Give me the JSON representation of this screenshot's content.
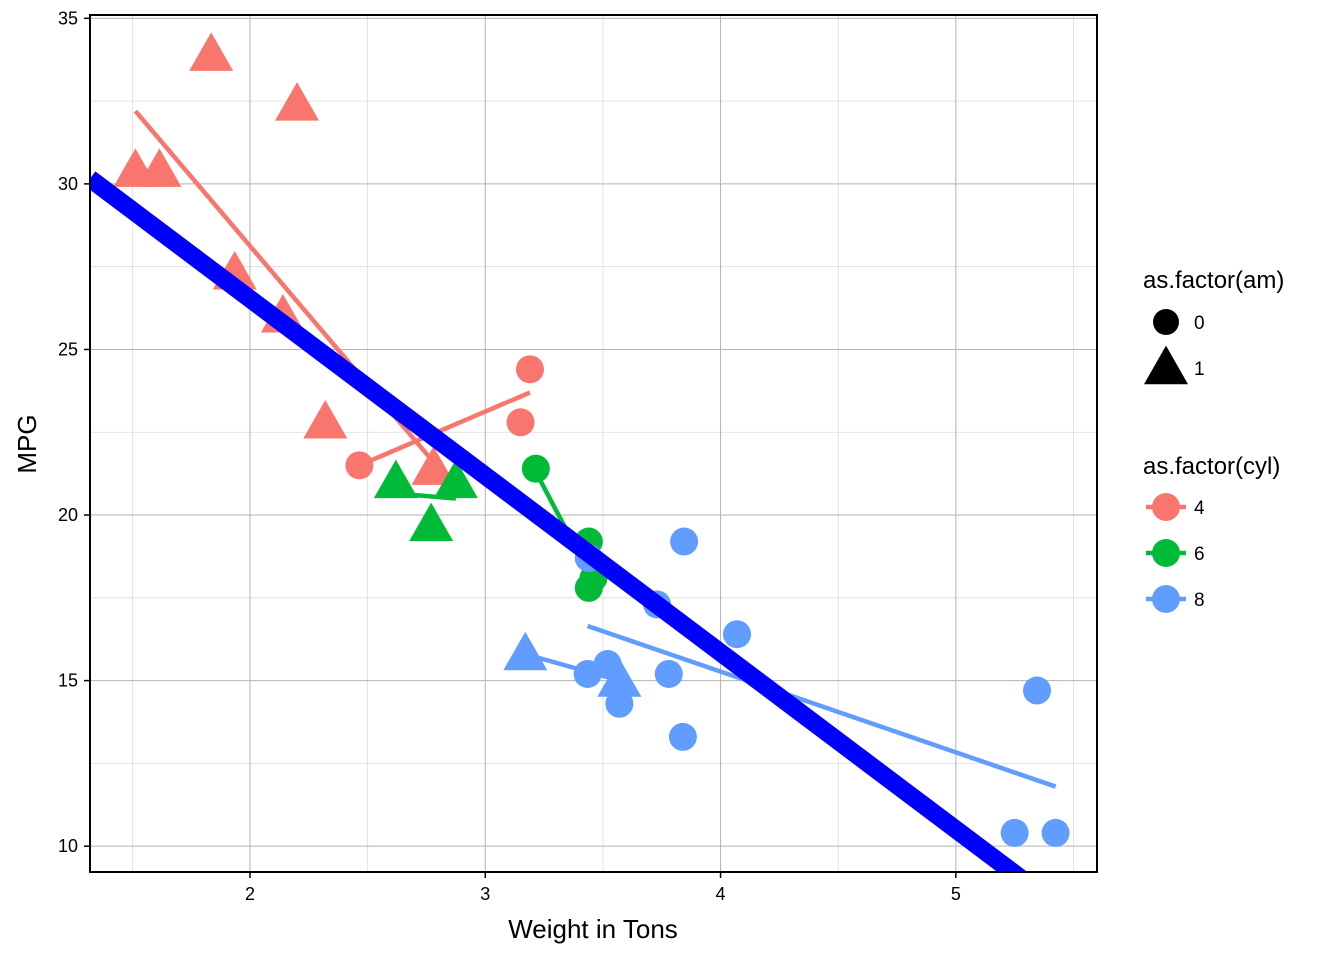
{
  "chart_data": {
    "type": "scatter",
    "xlabel": "Weight in Tons",
    "ylabel": "MPG",
    "xlim": [
      1.32,
      5.6
    ],
    "ylim": [
      9.22,
      35.1
    ],
    "x_ticks": [
      2,
      3,
      4,
      5
    ],
    "y_ticks": [
      10,
      15,
      20,
      25,
      30,
      35
    ],
    "grid": true,
    "legend_position": "right",
    "shape_legend": {
      "title": "as.factor(am)",
      "entries": [
        {
          "label": "0",
          "shape": "circle"
        },
        {
          "label": "1",
          "shape": "triangle"
        }
      ]
    },
    "color_legend": {
      "title": "as.factor(cyl)",
      "entries": [
        {
          "label": "4",
          "color": "#F8766D"
        },
        {
          "label": "6",
          "color": "#00BA38"
        },
        {
          "label": "8",
          "color": "#619CFF"
        }
      ]
    },
    "points": [
      {
        "x": 1.513,
        "y": 30.4,
        "cyl": "4",
        "am": "1"
      },
      {
        "x": 1.615,
        "y": 30.4,
        "cyl": "4",
        "am": "1"
      },
      {
        "x": 1.835,
        "y": 33.9,
        "cyl": "4",
        "am": "1"
      },
      {
        "x": 1.935,
        "y": 27.3,
        "cyl": "4",
        "am": "1"
      },
      {
        "x": 2.14,
        "y": 26.0,
        "cyl": "4",
        "am": "1"
      },
      {
        "x": 2.2,
        "y": 32.4,
        "cyl": "4",
        "am": "1"
      },
      {
        "x": 2.32,
        "y": 22.8,
        "cyl": "4",
        "am": "1"
      },
      {
        "x": 2.78,
        "y": 21.4,
        "cyl": "4",
        "am": "1"
      },
      {
        "x": 2.465,
        "y": 21.5,
        "cyl": "4",
        "am": "0"
      },
      {
        "x": 3.15,
        "y": 22.8,
        "cyl": "4",
        "am": "0"
      },
      {
        "x": 3.19,
        "y": 24.4,
        "cyl": "4",
        "am": "0"
      },
      {
        "x": 2.62,
        "y": 21.0,
        "cyl": "6",
        "am": "1"
      },
      {
        "x": 2.875,
        "y": 21.0,
        "cyl": "6",
        "am": "1"
      },
      {
        "x": 2.77,
        "y": 19.7,
        "cyl": "6",
        "am": "1"
      },
      {
        "x": 3.215,
        "y": 21.4,
        "cyl": "6",
        "am": "0"
      },
      {
        "x": 3.44,
        "y": 19.2,
        "cyl": "6",
        "am": "0"
      },
      {
        "x": 3.44,
        "y": 17.8,
        "cyl": "6",
        "am": "0"
      },
      {
        "x": 3.46,
        "y": 18.1,
        "cyl": "6",
        "am": "0"
      },
      {
        "x": 3.17,
        "y": 15.8,
        "cyl": "8",
        "am": "1"
      },
      {
        "x": 3.57,
        "y": 15.0,
        "cyl": "8",
        "am": "1"
      },
      {
        "x": 3.44,
        "y": 18.7,
        "cyl": "8",
        "am": "0"
      },
      {
        "x": 3.57,
        "y": 14.3,
        "cyl": "8",
        "am": "0"
      },
      {
        "x": 4.07,
        "y": 16.4,
        "cyl": "8",
        "am": "0"
      },
      {
        "x": 3.73,
        "y": 17.3,
        "cyl": "8",
        "am": "0"
      },
      {
        "x": 3.78,
        "y": 15.2,
        "cyl": "8",
        "am": "0"
      },
      {
        "x": 5.25,
        "y": 10.4,
        "cyl": "8",
        "am": "0"
      },
      {
        "x": 5.424,
        "y": 10.4,
        "cyl": "8",
        "am": "0"
      },
      {
        "x": 5.345,
        "y": 14.7,
        "cyl": "8",
        "am": "0"
      },
      {
        "x": 3.52,
        "y": 15.5,
        "cyl": "8",
        "am": "0"
      },
      {
        "x": 3.435,
        "y": 15.2,
        "cyl": "8",
        "am": "0"
      },
      {
        "x": 3.84,
        "y": 13.3,
        "cyl": "8",
        "am": "0"
      },
      {
        "x": 3.845,
        "y": 19.2,
        "cyl": "8",
        "am": "0"
      }
    ],
    "fit_lines": [
      {
        "cyl": "4",
        "am": "1",
        "x": [
          1.513,
          2.78
        ],
        "y": [
          32.2,
          21.6
        ]
      },
      {
        "cyl": "4",
        "am": "0",
        "x": [
          2.465,
          3.19
        ],
        "y": [
          21.5,
          23.7
        ]
      },
      {
        "cyl": "6",
        "am": "1",
        "x": [
          2.62,
          2.875
        ],
        "y": [
          20.65,
          20.5
        ]
      },
      {
        "cyl": "6",
        "am": "0",
        "x": [
          3.215,
          3.46
        ],
        "y": [
          21.3,
          18.0
        ]
      },
      {
        "cyl": "8",
        "am": "1",
        "x": [
          3.17,
          3.57
        ],
        "y": [
          15.8,
          15.0
        ]
      },
      {
        "cyl": "8",
        "am": "0",
        "x": [
          3.435,
          5.424
        ],
        "y": [
          16.65,
          11.8
        ]
      }
    ],
    "overall_fit": {
      "color": "#0000FF",
      "x": [
        1.32,
        5.6
      ],
      "y": [
        30.16,
        7.3
      ]
    }
  }
}
